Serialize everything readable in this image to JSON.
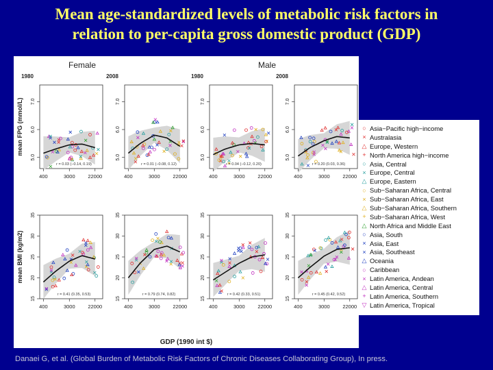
{
  "title_line1": "Mean age-standardized levels of metabolic risk factors in",
  "title_line2": "relation to per-capita gross domestic product (GDP)",
  "citation": "Danaei G, et al. (Global Burden of Metabolic Risk Factors of Chronic Diseases Collaborating Group), In press.",
  "chart_data": {
    "type": "scatter",
    "sex_labels": [
      "Female",
      "Male"
    ],
    "year_labels": [
      "1980",
      "2008",
      "1980",
      "2008"
    ],
    "xlabel": "GDP (1990 int $)",
    "x_ticks": [
      "400",
      "3000",
      "22000"
    ],
    "rows": [
      {
        "ylabel": "mean FPG (mmol/L)",
        "y_ticks": [
          "5.0",
          "6.0",
          "7.0"
        ],
        "ylim": [
          4.6,
          7.6
        ]
      },
      {
        "ylabel": "mean BMI (kg/m2)",
        "y_ticks": [
          "15",
          "20",
          "25",
          "30",
          "35"
        ],
        "ylim": [
          15,
          35
        ]
      }
    ],
    "correlations": [
      "r = 0.03 (−0.14, 0.19)",
      "r = 0.01 (−0.08, 0.12)",
      "r = 0.04 (−0.12, 0.20)",
      "r = 0.20 (0.03, 0.36)",
      "r = 0.41 (0.35, 0.53)",
      "r = 0.79 (0.74, 0.82)",
      "r = 0.42 (0.33, 0.51)",
      "r = 0.45 (0.42, 0.52)"
    ],
    "panels": [
      {
        "sex": "Female",
        "year": "1980",
        "row": "FPG",
        "fit": [
          [
            400,
            5.15
          ],
          [
            1000,
            5.3
          ],
          [
            3000,
            5.45
          ],
          [
            8000,
            5.48
          ],
          [
            22000,
            5.35
          ]
        ]
      },
      {
        "sex": "Female",
        "year": "2008",
        "row": "FPG",
        "fit": [
          [
            400,
            5.15
          ],
          [
            1000,
            5.5
          ],
          [
            3000,
            5.8
          ],
          [
            8000,
            5.7
          ],
          [
            22000,
            5.4
          ]
        ]
      },
      {
        "sex": "Male",
        "year": "1980",
        "row": "FPG",
        "fit": [
          [
            400,
            5.1
          ],
          [
            1000,
            5.3
          ],
          [
            3000,
            5.45
          ],
          [
            8000,
            5.5
          ],
          [
            22000,
            5.45
          ]
        ]
      },
      {
        "sex": "Male",
        "year": "2008",
        "row": "FPG",
        "fit": [
          [
            400,
            5.05
          ],
          [
            1000,
            5.35
          ],
          [
            3000,
            5.6
          ],
          [
            8000,
            5.75
          ],
          [
            22000,
            5.7
          ]
        ]
      },
      {
        "sex": "Female",
        "year": "1980",
        "row": "BMI",
        "fit": [
          [
            400,
            19
          ],
          [
            1000,
            21.5
          ],
          [
            3000,
            24
          ],
          [
            8000,
            25.3
          ],
          [
            22000,
            24.5
          ]
        ]
      },
      {
        "sex": "Female",
        "year": "2008",
        "row": "BMI",
        "fit": [
          [
            400,
            20
          ],
          [
            1000,
            23.5
          ],
          [
            3000,
            26.8
          ],
          [
            8000,
            27.6
          ],
          [
            22000,
            26.2
          ]
        ]
      },
      {
        "sex": "Male",
        "year": "1980",
        "row": "BMI",
        "fit": [
          [
            400,
            19.5
          ],
          [
            1000,
            21.3
          ],
          [
            3000,
            23.5
          ],
          [
            8000,
            25
          ],
          [
            22000,
            25.5
          ]
        ]
      },
      {
        "sex": "Male",
        "year": "2008",
        "row": "BMI",
        "fit": [
          [
            400,
            20
          ],
          [
            1000,
            22.5
          ],
          [
            3000,
            25.2
          ],
          [
            8000,
            26.8
          ],
          [
            22000,
            27.2
          ]
        ]
      }
    ],
    "legend": [
      {
        "name": "Asia−Pacific high−income",
        "symbol": "○",
        "color": "#e03030"
      },
      {
        "name": "Australasia",
        "symbol": "×",
        "color": "#e03030"
      },
      {
        "name": "Europe, Western",
        "symbol": "△",
        "color": "#e03030"
      },
      {
        "name": "North America high−income",
        "symbol": "+",
        "color": "#e03030"
      },
      {
        "name": "Asia, Central",
        "symbol": "○",
        "color": "#2aa0a0"
      },
      {
        "name": "Europe, Central",
        "symbol": "×",
        "color": "#2aa0a0"
      },
      {
        "name": "Europe, Eastern",
        "symbol": "△",
        "color": "#2aa0a0"
      },
      {
        "name": "Sub−Saharan Africa, Central",
        "symbol": "○",
        "color": "#e0b020"
      },
      {
        "name": "Sub−Saharan Africa, East",
        "symbol": "×",
        "color": "#e0b020"
      },
      {
        "name": "Sub−Saharan Africa, Southern",
        "symbol": "△",
        "color": "#e0b020"
      },
      {
        "name": "Sub−Saharan Africa, West",
        "symbol": "+",
        "color": "#e0b020"
      },
      {
        "name": "North Africa and Middle East",
        "symbol": "△",
        "color": "#30a030"
      },
      {
        "name": "Asia, South",
        "symbol": "○",
        "color": "#2040c0"
      },
      {
        "name": "Asia, East",
        "symbol": "×",
        "color": "#2040c0"
      },
      {
        "name": "Asia, Southeast",
        "symbol": "×",
        "color": "#2040c0"
      },
      {
        "name": "Oceania",
        "symbol": "△",
        "color": "#2040c0"
      },
      {
        "name": "Caribbean",
        "symbol": "○",
        "color": "#c030c0"
      },
      {
        "name": "Latin America, Andean",
        "symbol": "×",
        "color": "#c030c0"
      },
      {
        "name": "Latin America, Central",
        "symbol": "△",
        "color": "#c030c0"
      },
      {
        "name": "Latin America, Southern",
        "symbol": "+",
        "color": "#c030c0"
      },
      {
        "name": "Latin America, Tropical",
        "symbol": "▽",
        "color": "#c030c0"
      }
    ]
  }
}
